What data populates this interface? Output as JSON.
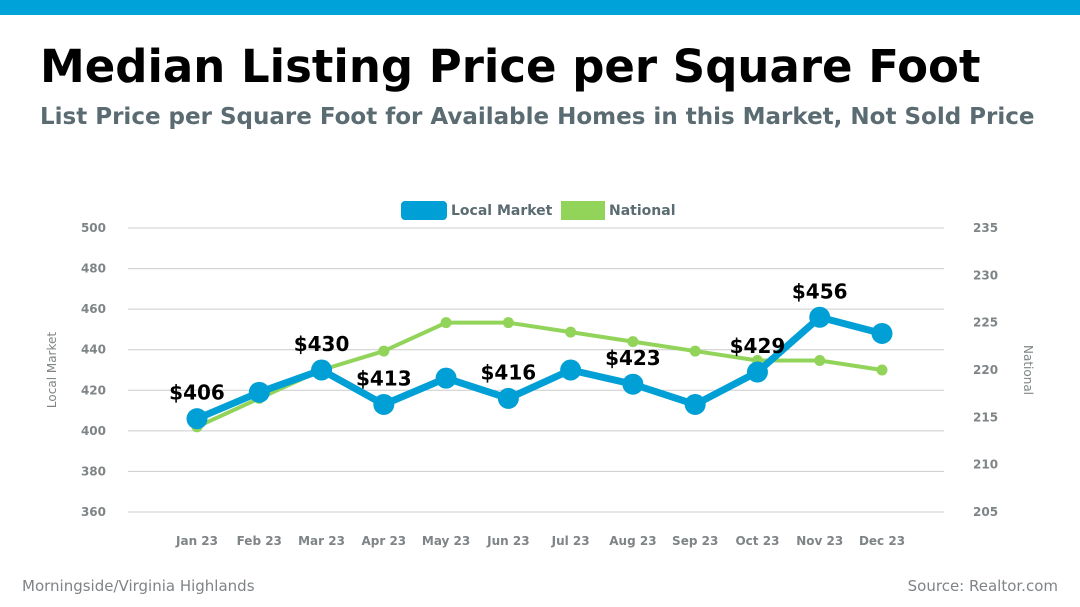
{
  "header": {
    "title": "Median Listing Price per Square Foot",
    "subtitle": "List Price per Square Foot for Available Homes in this Market, Not Sold Price"
  },
  "footer": {
    "location": "Morningside/Virginia Highlands",
    "source": "Source: Realtor.com"
  },
  "colors": {
    "accent_bar": "#00a3d9",
    "local": "#009fd6",
    "national": "#92d45a",
    "grid": "#cccccc",
    "tick": "#7f8487"
  },
  "chart_data": {
    "type": "line",
    "categories": [
      "Jan 23",
      "Feb 23",
      "Mar 23",
      "Apr 23",
      "May 23",
      "Jun 23",
      "Jul 23",
      "Aug 23",
      "Sep 23",
      "Oct 23",
      "Nov 23",
      "Dec 23"
    ],
    "series": [
      {
        "name": "Local Market",
        "axis": "left",
        "values": [
          406,
          419,
          430,
          413,
          426,
          416,
          430,
          423,
          413,
          429,
          456,
          448
        ],
        "data_labels": [
          "$406",
          "",
          "$430",
          "$413",
          "",
          "$416",
          "",
          "$423",
          "",
          "$429",
          "$456",
          ""
        ]
      },
      {
        "name": "National",
        "axis": "right",
        "values": [
          214,
          217,
          220,
          222,
          225,
          225,
          224,
          223,
          222,
          221,
          221,
          220
        ]
      }
    ],
    "y_left": {
      "label": "Local Market",
      "min": 360,
      "max": 500,
      "ticks": [
        360,
        380,
        400,
        420,
        440,
        460,
        480,
        500
      ]
    },
    "y_right": {
      "label": "National",
      "min": 205,
      "max": 235,
      "ticks": [
        205,
        210,
        215,
        220,
        225,
        230,
        235
      ]
    },
    "legend": [
      "Local Market",
      "National"
    ],
    "legend_position": "top-center",
    "grid": true
  }
}
